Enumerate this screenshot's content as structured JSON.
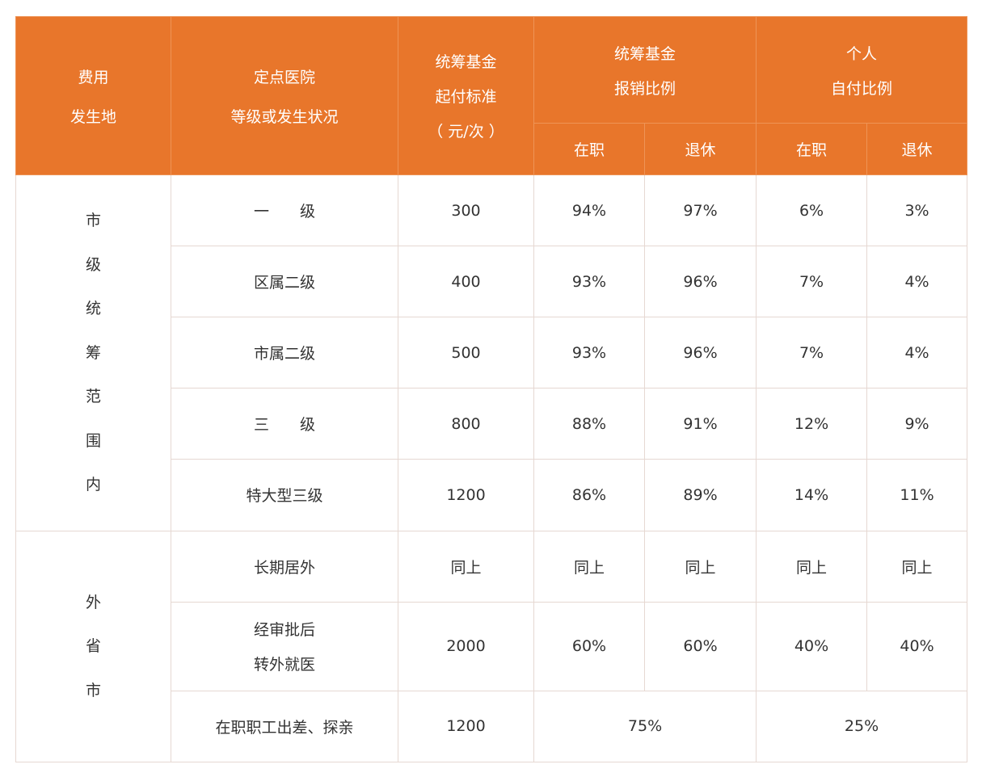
{
  "header": {
    "location": [
      "费用",
      "发生地"
    ],
    "hospital": [
      "定点医院",
      "等级或发生状况"
    ],
    "threshold": [
      "统筹基金",
      "起付标准",
      "（ 元/次 ）"
    ],
    "fund_ratio": [
      "统筹基金",
      "报销比例"
    ],
    "personal_ratio": [
      "个人",
      "自付比例"
    ],
    "employed": "在职",
    "retired": "退休"
  },
  "groups": [
    {
      "location_chars": [
        "市",
        "级",
        "统",
        "筹",
        "范",
        "围",
        "内"
      ],
      "rows": [
        {
          "level": "一　　级",
          "threshold": "300",
          "fund_employed": "94%",
          "fund_retired": "97%",
          "self_employed": "6%",
          "self_retired": "3%"
        },
        {
          "level": "区属二级",
          "threshold": "400",
          "fund_employed": "93%",
          "fund_retired": "96%",
          "self_employed": "7%",
          "self_retired": "4%"
        },
        {
          "level": "市属二级",
          "threshold": "500",
          "fund_employed": "93%",
          "fund_retired": "96%",
          "self_employed": "7%",
          "self_retired": "4%"
        },
        {
          "level": "三　　级",
          "threshold": "800",
          "fund_employed": "88%",
          "fund_retired": "91%",
          "self_employed": "12%",
          "self_retired": "9%"
        },
        {
          "level": "特大型三级",
          "threshold": "1200",
          "fund_employed": "86%",
          "fund_retired": "89%",
          "self_employed": "14%",
          "self_retired": "11%"
        }
      ]
    },
    {
      "location_chars": [
        "外",
        "省",
        "市"
      ],
      "rows": [
        {
          "level": "长期居外",
          "threshold": "同上",
          "fund_employed": "同上",
          "fund_retired": "同上",
          "self_employed": "同上",
          "self_retired": "同上"
        },
        {
          "level_lines": [
            "经审批后",
            "转外就医"
          ],
          "threshold": "2000",
          "fund_employed": "60%",
          "fund_retired": "60%",
          "self_employed": "40%",
          "self_retired": "40%"
        },
        {
          "level": "在职职工出差、探亲",
          "threshold": "1200",
          "fund_merged": "75%",
          "self_merged": "25%"
        }
      ]
    }
  ]
}
